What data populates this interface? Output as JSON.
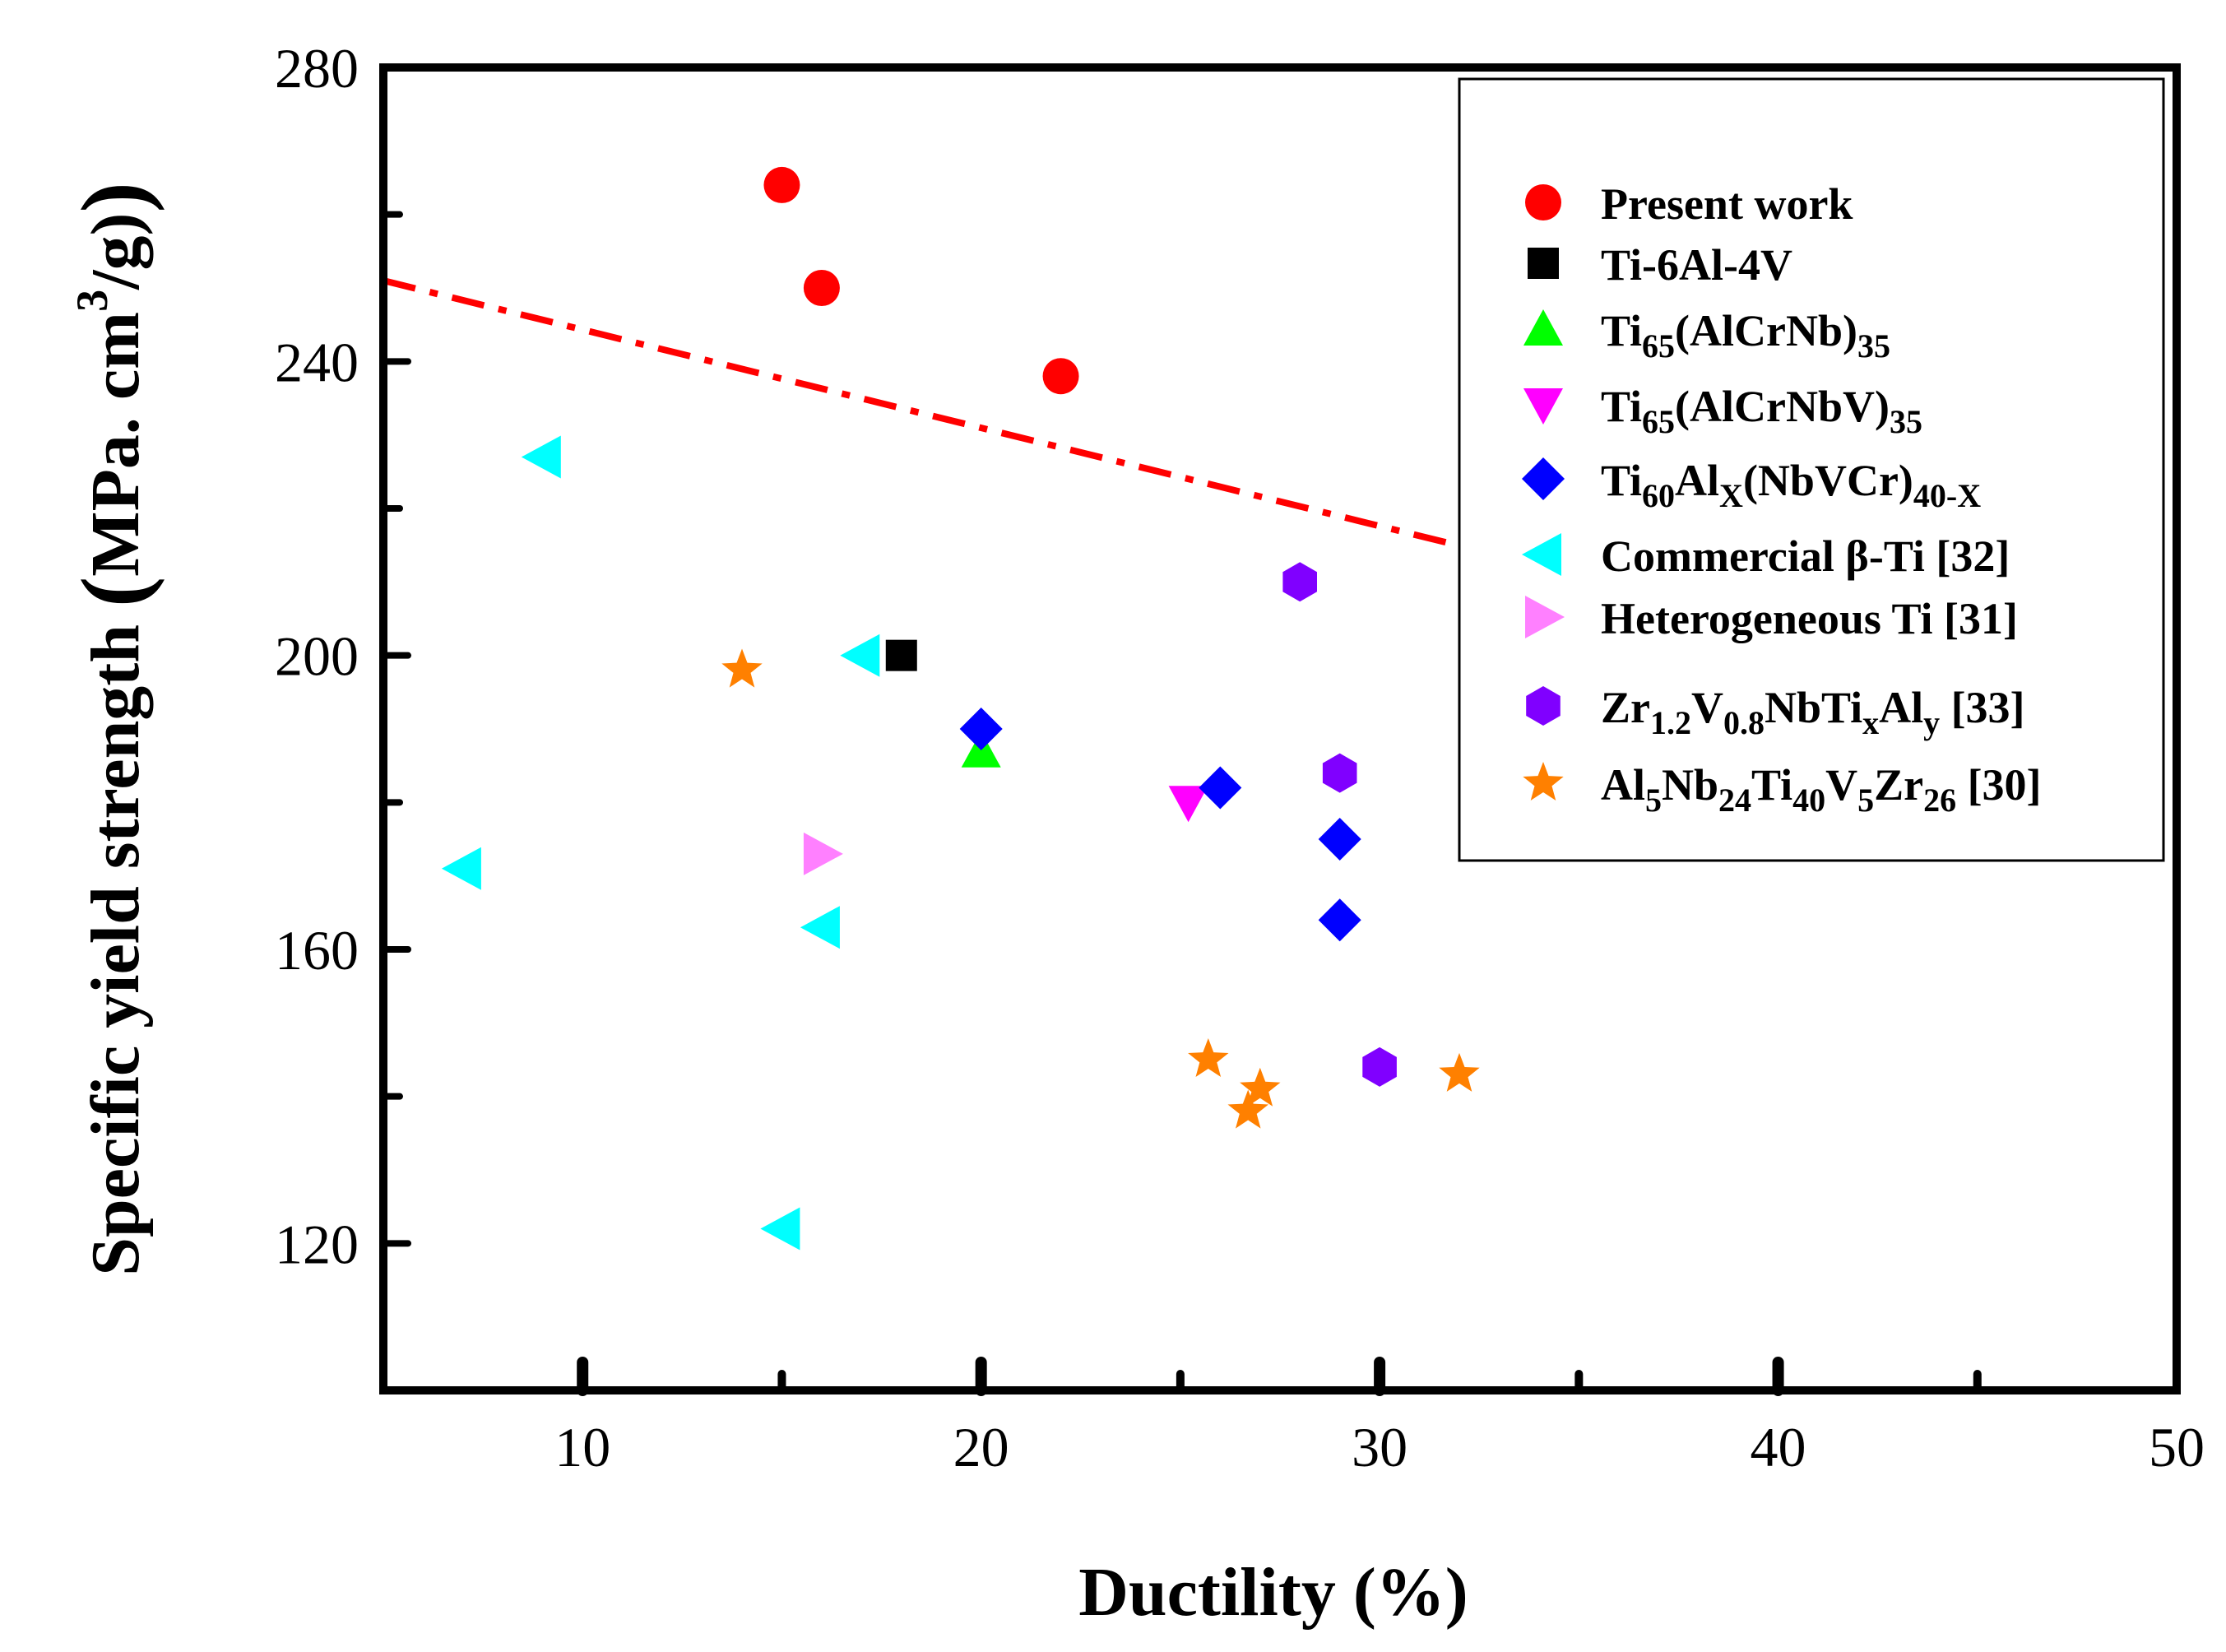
{
  "chart_data": {
    "type": "scatter",
    "xlabel": "Ductility (%)",
    "ylabel": {
      "main": "Specific yield strength ",
      "open": "(",
      "units": "MPa.   cm",
      "sup": "3",
      "tail": "/g)",
      "close": ")"
    },
    "xlim": [
      5,
      50
    ],
    "ylim": [
      100,
      280
    ],
    "xticks": [
      10,
      20,
      30,
      40,
      50
    ],
    "yticks": [
      120,
      160,
      200,
      240,
      280
    ],
    "grid": false,
    "legend_position": "top-right",
    "trend_line": {
      "style": "dash-dot",
      "color": "#ff0000",
      "x": [
        5,
        32.7
      ],
      "y": [
        251,
        214
      ]
    },
    "series": [
      {
        "key": "present",
        "marker": "circle",
        "color": "#ff0000",
        "points": [
          [
            15,
            264
          ],
          [
            16,
            250
          ],
          [
            22,
            238
          ]
        ]
      },
      {
        "key": "ti64",
        "marker": "square",
        "color": "#000000",
        "points": [
          [
            18,
            200
          ]
        ]
      },
      {
        "key": "ti65a",
        "marker": "triangle-up",
        "color": "#00ff00",
        "points": [
          [
            20,
            187
          ]
        ]
      },
      {
        "key": "ti65b",
        "marker": "triangle-down",
        "color": "#ff00ff",
        "points": [
          [
            25.2,
            180
          ]
        ]
      },
      {
        "key": "ti60",
        "marker": "diamond",
        "color": "#0000ff",
        "points": [
          [
            20,
            190
          ],
          [
            26,
            182
          ],
          [
            29,
            175
          ],
          [
            29,
            164
          ]
        ]
      },
      {
        "key": "beta",
        "marker": "triangle-left",
        "color": "#00ffff",
        "points": [
          [
            9,
            227
          ],
          [
            17,
            200
          ],
          [
            7,
            171
          ],
          [
            16,
            163
          ],
          [
            15,
            122
          ]
        ]
      },
      {
        "key": "hetero",
        "marker": "triangle-right",
        "color": "#ff80ff",
        "points": [
          [
            16,
            173
          ]
        ]
      },
      {
        "key": "zr",
        "marker": "hexagon",
        "color": "#8000ff",
        "points": [
          [
            28,
            210
          ],
          [
            29,
            184
          ],
          [
            30,
            144
          ]
        ]
      },
      {
        "key": "al5",
        "marker": "star",
        "color": "#ff8000",
        "points": [
          [
            14,
            198
          ],
          [
            25.7,
            145
          ],
          [
            27,
            141
          ],
          [
            26.7,
            138
          ],
          [
            32,
            143
          ]
        ]
      }
    ],
    "legend": [
      {
        "key": "present",
        "parts": [
          {
            "t": "Present work"
          }
        ]
      },
      {
        "key": "ti64",
        "parts": [
          {
            "t": "Ti-6Al-4V"
          }
        ]
      },
      {
        "key": "ti65a",
        "parts": [
          {
            "t": "Ti"
          },
          {
            "t": "65",
            "sub": true
          },
          {
            "t": "(AlCrNb)"
          },
          {
            "t": "35",
            "sub": true
          }
        ]
      },
      {
        "key": "ti65b",
        "parts": [
          {
            "t": "Ti"
          },
          {
            "t": "65",
            "sub": true
          },
          {
            "t": "(AlCrNbV)"
          },
          {
            "t": "35",
            "sub": true
          }
        ]
      },
      {
        "key": "ti60",
        "parts": [
          {
            "t": "Ti"
          },
          {
            "t": "60",
            "sub": true
          },
          {
            "t": "Al"
          },
          {
            "t": "X",
            "sub": true
          },
          {
            "t": "(NbVCr)"
          },
          {
            "t": "40-X",
            "sub": true
          }
        ]
      },
      {
        "key": "beta",
        "parts": [
          {
            "t": "Commercial β-Ti [32]"
          }
        ]
      },
      {
        "key": "hetero",
        "parts": [
          {
            "t": "Heterogeneous Ti [31]"
          }
        ]
      },
      {
        "key": "zr",
        "parts": [
          {
            "t": "Zr"
          },
          {
            "t": "1.2",
            "sub": true
          },
          {
            "t": "V"
          },
          {
            "t": "0.8",
            "sub": true
          },
          {
            "t": "NbTi"
          },
          {
            "t": "x",
            "sub": true
          },
          {
            "t": "Al"
          },
          {
            "t": "y",
            "sub": true
          },
          {
            "t": " [33]"
          }
        ]
      },
      {
        "key": "al5",
        "parts": [
          {
            "t": "Al"
          },
          {
            "t": "5",
            "sub": true
          },
          {
            "t": "Nb"
          },
          {
            "t": "24",
            "sub": true
          },
          {
            "t": "Ti"
          },
          {
            "t": "40",
            "sub": true
          },
          {
            "t": "V"
          },
          {
            "t": "5",
            "sub": true
          },
          {
            "t": "Zr"
          },
          {
            "t": "26",
            "sub": true
          },
          {
            "t": " [30]"
          }
        ]
      }
    ]
  }
}
